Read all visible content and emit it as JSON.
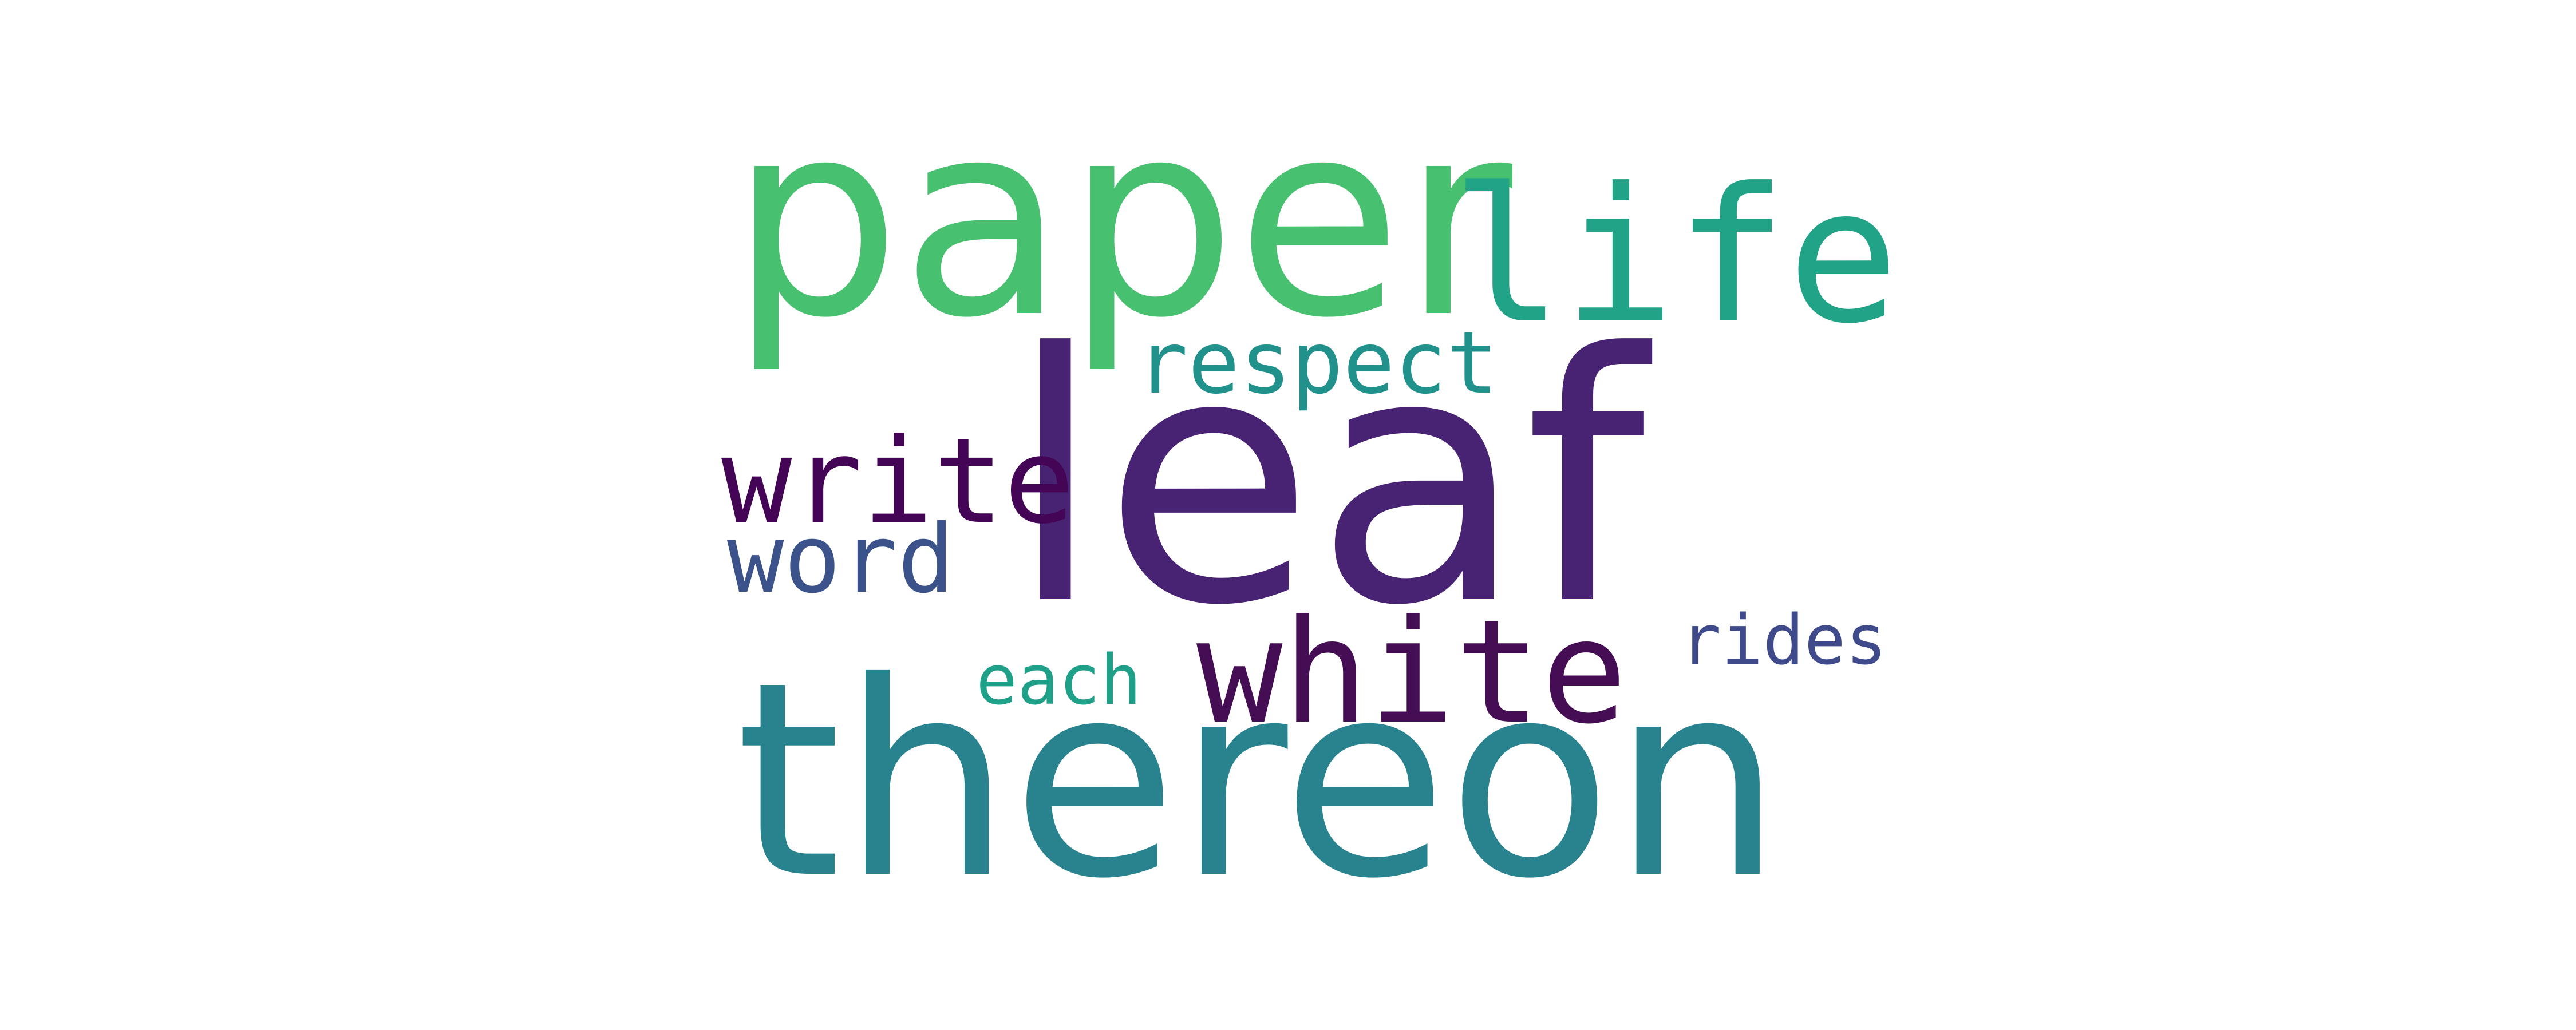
{
  "words": [
    {
      "text": "leaf",
      "color": "#482374"
    },
    {
      "text": "paper",
      "color": "#47C06F"
    },
    {
      "text": "thereon",
      "color": "#29838E"
    },
    {
      "text": "life",
      "color": "#20A386"
    },
    {
      "text": "white",
      "color": "#450D54"
    },
    {
      "text": "write",
      "color": "#440556"
    },
    {
      "text": "word",
      "color": "#3B528B"
    },
    {
      "text": "respect",
      "color": "#21918C"
    },
    {
      "text": "each",
      "color": "#1FA088"
    },
    {
      "text": "rides",
      "color": "#3E4A89"
    }
  ]
}
